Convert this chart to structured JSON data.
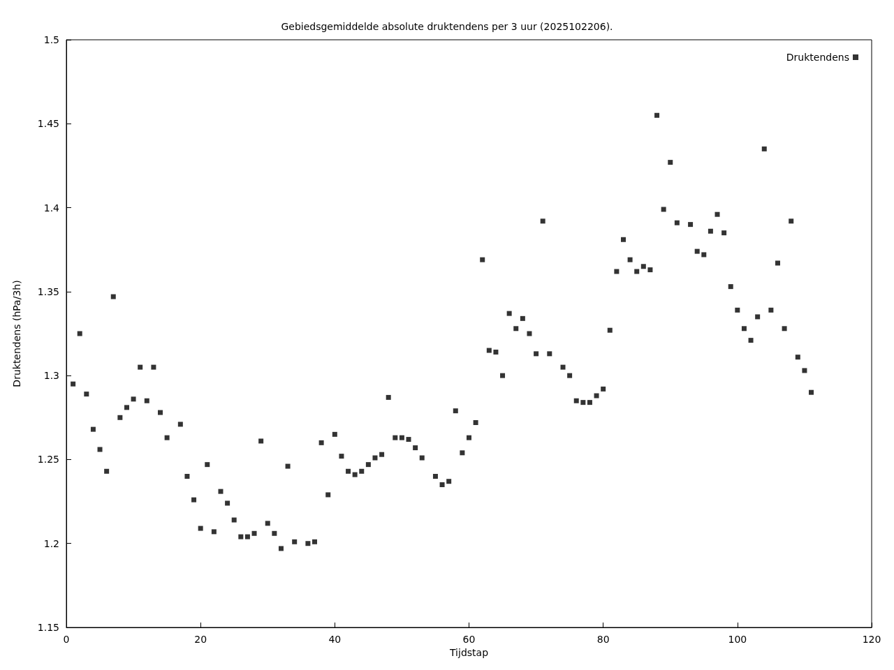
{
  "chart_data": {
    "type": "scatter",
    "title": "Gebiedsgemiddelde absolute druktendens per 3 uur (2025102206).",
    "xlabel": "Tijdstap",
    "ylabel": "Druktendens (hPa/3h)",
    "xlim": [
      0,
      120
    ],
    "xticks": [
      0,
      20,
      40,
      60,
      80,
      100,
      120
    ],
    "ylim": [
      1.15,
      1.5
    ],
    "yticks": [
      1.15,
      1.2,
      1.25,
      1.3,
      1.35,
      1.4,
      1.45,
      1.5
    ],
    "grid": false,
    "legend": "top right",
    "marker": "square",
    "series": [
      {
        "name": "Druktendens",
        "color": "#000000",
        "x": [
          1,
          2,
          3,
          4,
          5,
          6,
          7,
          8,
          9,
          10,
          11,
          12,
          13,
          14,
          15,
          17,
          18,
          19,
          20,
          21,
          22,
          23,
          24,
          25,
          26,
          27,
          28,
          29,
          30,
          31,
          32,
          33,
          34,
          36,
          37,
          38,
          39,
          40,
          41,
          42,
          43,
          44,
          45,
          46,
          47,
          48,
          49,
          50,
          51,
          52,
          53,
          55,
          56,
          57,
          58,
          59,
          60,
          61,
          62,
          63,
          64,
          65,
          66,
          67,
          68,
          69,
          70,
          71,
          72,
          74,
          75,
          76,
          77,
          78,
          79,
          80,
          81,
          82,
          83,
          84,
          85,
          86,
          87,
          88,
          89,
          90,
          91,
          93,
          94,
          95,
          96,
          97,
          98,
          99,
          100,
          101,
          102,
          103,
          104,
          105,
          106,
          107,
          108,
          109,
          110,
          111
        ],
        "values": [
          1.295,
          1.325,
          1.289,
          1.268,
          1.256,
          1.243,
          1.347,
          1.275,
          1.281,
          1.286,
          1.305,
          1.285,
          1.305,
          1.278,
          1.263,
          1.271,
          1.24,
          1.226,
          1.209,
          1.247,
          1.207,
          1.231,
          1.224,
          1.214,
          1.204,
          1.204,
          1.206,
          1.261,
          1.212,
          1.206,
          1.197,
          1.246,
          1.201,
          1.2,
          1.201,
          1.26,
          1.229,
          1.265,
          1.252,
          1.243,
          1.241,
          1.243,
          1.247,
          1.251,
          1.253,
          1.287,
          1.263,
          1.263,
          1.262,
          1.257,
          1.251,
          1.24,
          1.235,
          1.237,
          1.279,
          1.254,
          1.263,
          1.272,
          1.369,
          1.315,
          1.314,
          1.3,
          1.337,
          1.328,
          1.334,
          1.325,
          1.313,
          1.392,
          1.313,
          1.305,
          1.3,
          1.285,
          1.284,
          1.284,
          1.288,
          1.292,
          1.327,
          1.362,
          1.381,
          1.369,
          1.362,
          1.365,
          1.363,
          1.455,
          1.399,
          1.427,
          1.391,
          1.39,
          1.374,
          1.372,
          1.386,
          1.396,
          1.385,
          1.353,
          1.339,
          1.328,
          1.321,
          1.335,
          1.435,
          1.339,
          1.367,
          1.328,
          1.392,
          1.311,
          1.303,
          1.29
        ]
      }
    ]
  }
}
